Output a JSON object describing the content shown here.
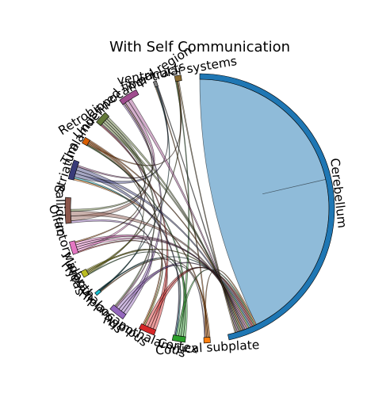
{
  "chart_data": {
    "type": "chord",
    "title": "With Self Communication",
    "nodes": [
      {
        "name": "Cerebellum",
        "color": "#1f77b4"
      },
      {
        "name": "Cortical subplate",
        "color": "#ff7f0e"
      },
      {
        "name": "Cortex",
        "color": "#2ca02c"
      },
      {
        "name": "Hypothalamus",
        "color": "#d62728"
      },
      {
        "name": "Hippocampus",
        "color": "#9467bd"
      },
      {
        "name": "Hypothalamus",
        "color": "#17becf"
      },
      {
        "name": "Midbrain",
        "color": "#bcbd22"
      },
      {
        "name": "Olfactory areas",
        "color": "#e377c2"
      },
      {
        "name": "Pallidum",
        "color": "#8c564b"
      },
      {
        "name": "Striatum",
        "color": "#393b79"
      },
      {
        "name": "Thalamus",
        "color": "#d95f02"
      },
      {
        "name": "Undefined",
        "color": "#637939"
      },
      {
        "name": "Retrohippocampal region",
        "color": "#a04d8f"
      },
      {
        "name": "fiber tracts",
        "color": "#7f7f7f"
      },
      {
        "name": "ventricular systems",
        "color": "#8c6d31"
      }
    ],
    "relative_size": [
      120,
      2,
      4,
      5,
      5,
      1,
      2,
      4,
      8,
      6,
      2,
      4,
      6,
      1,
      2
    ],
    "self_link_share": 0.92
  }
}
